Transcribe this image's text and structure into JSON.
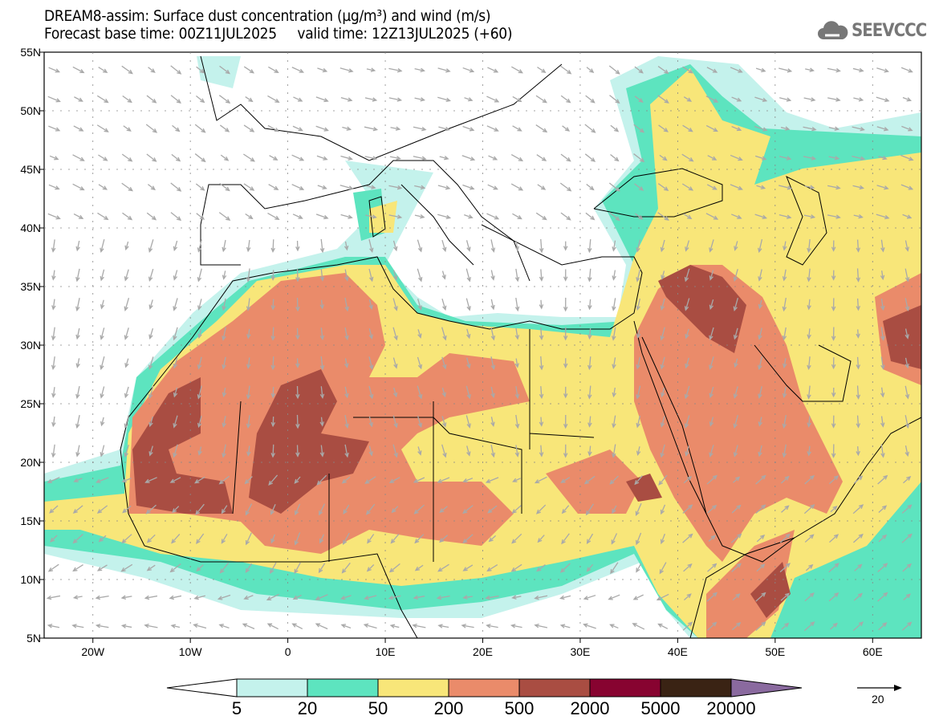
{
  "title": {
    "line1": "DREAM8-assim: Surface dust concentration (µg/m³) and wind (m/s)",
    "line2": "Forecast base time: 00Z11JUL2025     valid time: 12Z13JUL2025 (+60)"
  },
  "logo": {
    "text": "SEEVCCC",
    "icon": "cloud-icon"
  },
  "map": {
    "lon_range": [
      -25,
      65
    ],
    "lat_range": [
      5,
      55
    ],
    "lat_labels": [
      {
        "lat": 55,
        "label": "55N"
      },
      {
        "lat": 50,
        "label": "50N"
      },
      {
        "lat": 45,
        "label": "45N"
      },
      {
        "lat": 40,
        "label": "40N"
      },
      {
        "lat": 35,
        "label": "35N"
      },
      {
        "lat": 30,
        "label": "30N"
      },
      {
        "lat": 25,
        "label": "25N"
      },
      {
        "lat": 20,
        "label": "20N"
      },
      {
        "lat": 15,
        "label": "15N"
      },
      {
        "lat": 10,
        "label": "10N"
      },
      {
        "lat": 5,
        "label": "5N"
      }
    ],
    "lon_labels": [
      {
        "lon": -20,
        "label": "20W"
      },
      {
        "lon": -10,
        "label": "10W"
      },
      {
        "lon": 0,
        "label": "0"
      },
      {
        "lon": 10,
        "label": "10E"
      },
      {
        "lon": 20,
        "label": "20E"
      },
      {
        "lon": 30,
        "label": "30E"
      },
      {
        "lon": 40,
        "label": "40E"
      },
      {
        "lon": 50,
        "label": "50E"
      },
      {
        "lon": 60,
        "label": "60E"
      }
    ]
  },
  "colorbar": {
    "unit": "µg/m³",
    "labels": [
      "5",
      "20",
      "50",
      "200",
      "500",
      "2000",
      "5000",
      "20000"
    ],
    "colors": [
      "#ffffff",
      "#c4f2ec",
      "#5de4bf",
      "#f8e679",
      "#ea8b6a",
      "#a94d42",
      "#870330",
      "#3a2314",
      "#8a6a9f"
    ]
  },
  "wind_reference": {
    "label": "20",
    "unit": "m/s"
  }
}
